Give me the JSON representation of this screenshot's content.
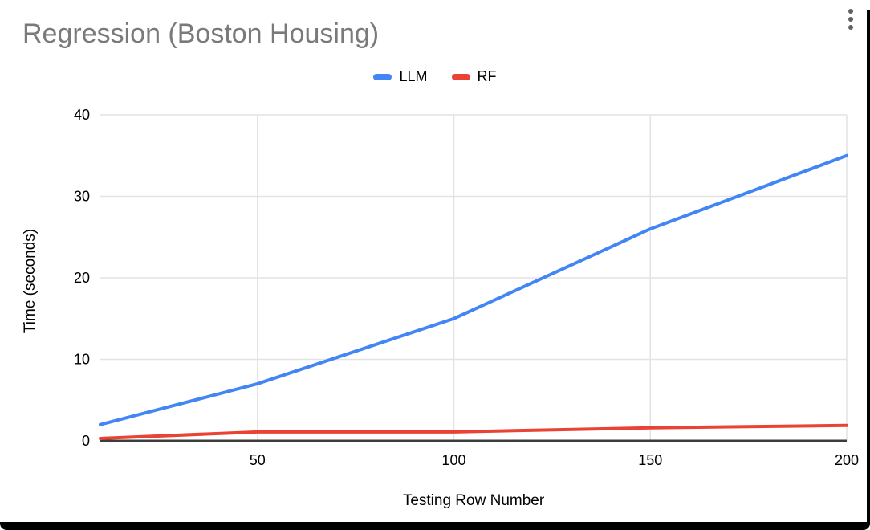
{
  "window": {
    "menu_icon": "kebab-menu"
  },
  "chart_data": {
    "type": "line",
    "title": "Regression (Boston Housing)",
    "xlabel": "Testing Row Number",
    "ylabel": "Time (seconds)",
    "x": [
      10,
      50,
      100,
      150,
      200
    ],
    "series": [
      {
        "name": "LLM",
        "color": "#4285f4",
        "values": [
          2,
          7,
          15,
          26,
          35
        ]
      },
      {
        "name": "RF",
        "color": "#ea4335",
        "values": [
          0.3,
          1.1,
          1.1,
          1.6,
          1.9
        ]
      }
    ],
    "xlim": [
      10,
      200
    ],
    "ylim": [
      0,
      40
    ],
    "xticks": [
      50,
      100,
      150,
      200
    ],
    "yticks": [
      0,
      10,
      20,
      30,
      40
    ],
    "grid": true,
    "legend_position": "top-center"
  },
  "colors": {
    "title_text": "#7a7a7a",
    "tick_text": "#000000",
    "gridline": "#e3e3e3",
    "axis_line": "#3c3c3c",
    "menu_dots": "#616161",
    "series_llm": "#4285f4",
    "series_rf": "#ea4335"
  }
}
